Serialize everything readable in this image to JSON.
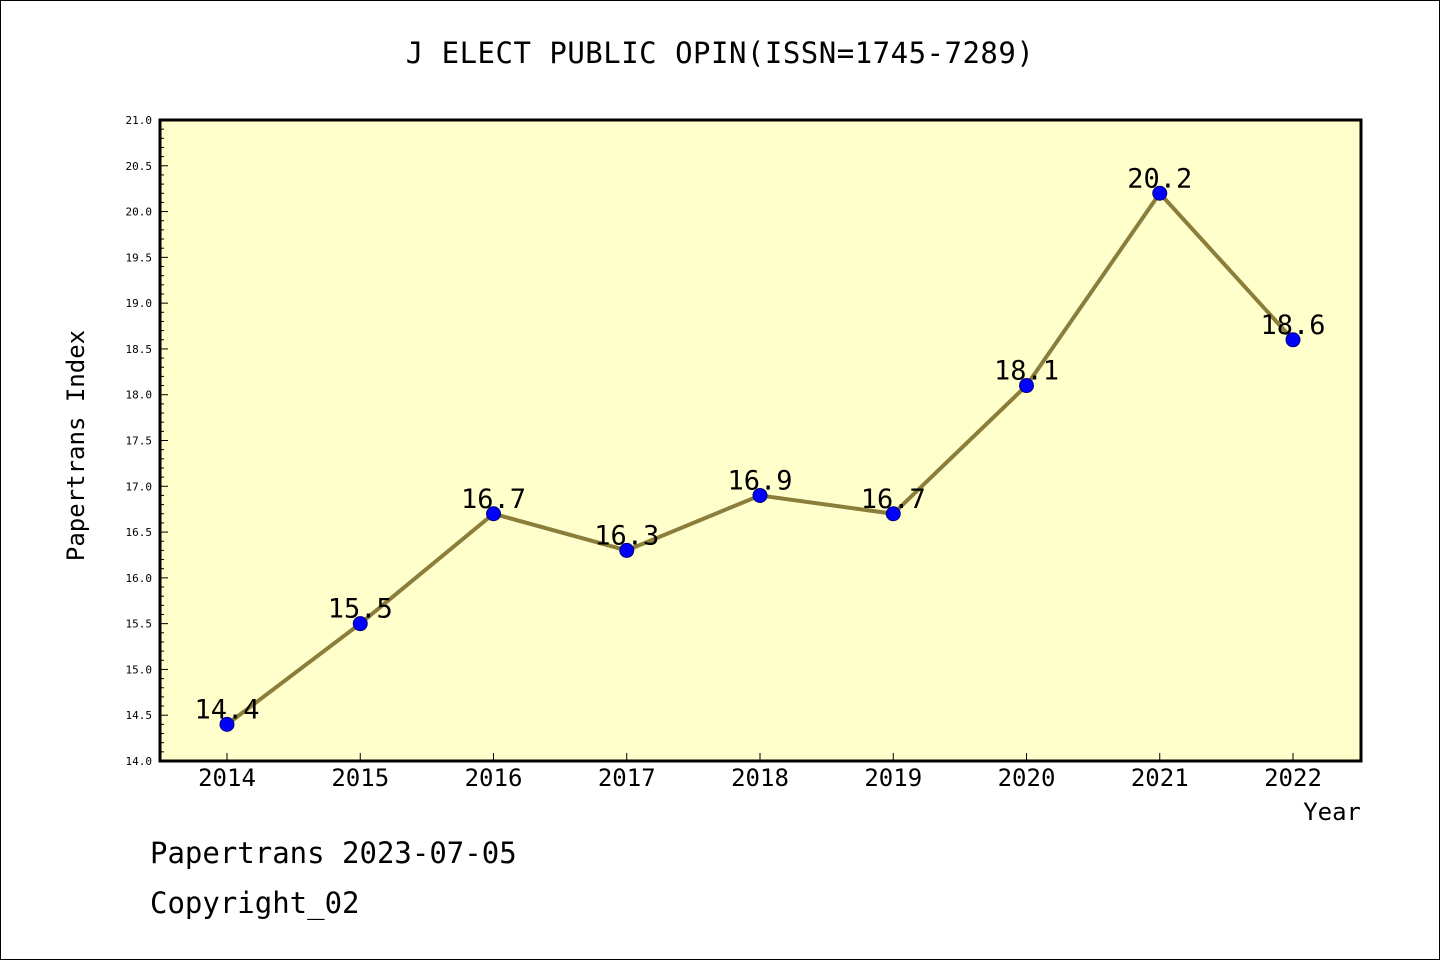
{
  "title": "J ELECT PUBLIC OPIN(ISSN=1745-7289)",
  "footer": {
    "date_line": "Papertrans 2023-07-05",
    "copyright": "Copyright_02"
  },
  "colors": {
    "plot_background": "#ffffcc",
    "line": "#8b7d3a",
    "marker": "#0000ff",
    "axes": "#000000"
  },
  "chart_data": {
    "type": "line",
    "title": "J ELECT PUBLIC OPIN(ISSN=1745-7289)",
    "xlabel": "Year",
    "ylabel": "Papertrans Index",
    "categories": [
      "2014",
      "2015",
      "2016",
      "2017",
      "2018",
      "2019",
      "2020",
      "2021",
      "2022"
    ],
    "series": [
      {
        "values": [
          14.4,
          15.5,
          16.7,
          16.3,
          16.9,
          16.7,
          18.1,
          20.2,
          18.6
        ]
      }
    ],
    "data_labels": [
      "14.4",
      "15.5",
      "16.7",
      "16.3",
      "16.9",
      "16.7",
      "18.1",
      "20.2",
      "18.6"
    ],
    "ylim": [
      14.0,
      21.0
    ],
    "y_ticks": [
      "14.0",
      "14.5",
      "15.0",
      "15.5",
      "16.0",
      "16.5",
      "17.0",
      "17.5",
      "18.0",
      "18.5",
      "19.0",
      "19.5",
      "20.0",
      "20.5",
      "21.0"
    ],
    "grid": false,
    "legend": "none"
  }
}
